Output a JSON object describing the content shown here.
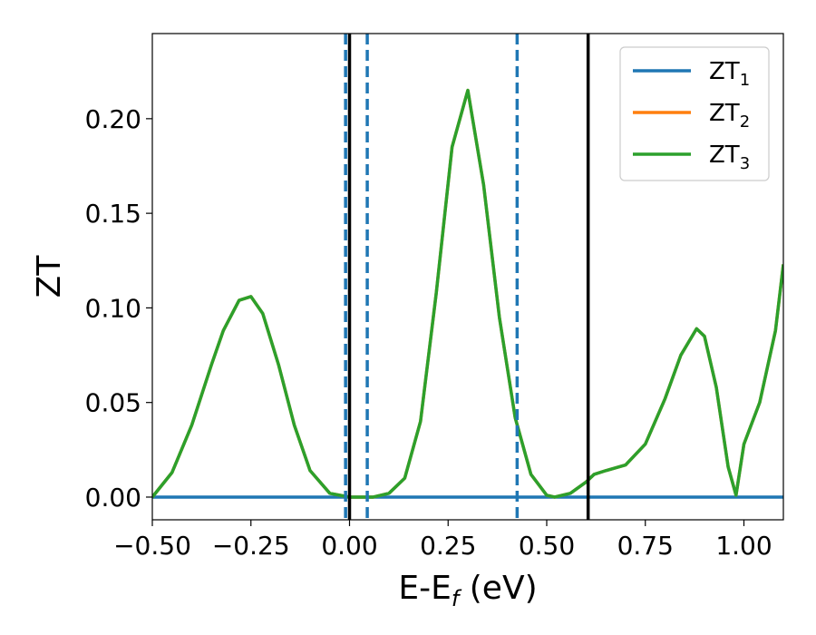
{
  "chart_data": {
    "type": "line",
    "title": "",
    "xlabel": "E-E",
    "xlabel_subscript": "f",
    "xlabel_unit": " (eV)",
    "ylabel": "ZT",
    "xlim": [
      -0.5,
      1.1
    ],
    "ylim": [
      -0.012,
      0.245
    ],
    "xticks": [
      -0.5,
      -0.25,
      0.0,
      0.25,
      0.5,
      0.75,
      1.0
    ],
    "xtick_labels": [
      "−0.50",
      "−0.25",
      "0.00",
      "0.25",
      "0.50",
      "0.75",
      "1.00"
    ],
    "yticks": [
      0.0,
      0.05,
      0.1,
      0.15,
      0.2
    ],
    "ytick_labels": [
      "0.00",
      "0.05",
      "0.10",
      "0.15",
      "0.20"
    ],
    "grid": false,
    "legend_position": "top-right",
    "series": [
      {
        "name": "ZT",
        "name_subscript": "1",
        "color": "#1f77b4",
        "x": [
          -0.5,
          1.1
        ],
        "y": [
          0.0,
          0.0
        ]
      },
      {
        "name": "ZT",
        "name_subscript": "2",
        "color": "#ff7f0e",
        "x": [
          -0.5,
          -0.45,
          -0.4,
          -0.35,
          -0.32,
          -0.28,
          -0.25,
          -0.22,
          -0.18,
          -0.14,
          -0.1,
          -0.05,
          0.0,
          0.03,
          0.06,
          0.1,
          0.14,
          0.18,
          0.22,
          0.26,
          0.3,
          0.34,
          0.38,
          0.42,
          0.46,
          0.5,
          0.52,
          0.56,
          0.6,
          0.62,
          0.65,
          0.7,
          0.75,
          0.8,
          0.84,
          0.88,
          0.9,
          0.93,
          0.96,
          0.98,
          1.0,
          1.04,
          1.08,
          1.1
        ],
        "y": [
          0.0,
          0.013,
          0.038,
          0.07,
          0.088,
          0.104,
          0.106,
          0.097,
          0.07,
          0.038,
          0.014,
          0.002,
          0.0,
          0.0,
          0.0,
          0.002,
          0.01,
          0.04,
          0.108,
          0.185,
          0.215,
          0.165,
          0.095,
          0.042,
          0.012,
          0.001,
          0.0,
          0.002,
          0.008,
          0.012,
          0.014,
          0.017,
          0.028,
          0.052,
          0.075,
          0.089,
          0.085,
          0.058,
          0.016,
          0.001,
          0.028,
          0.05,
          0.088,
          0.123
        ]
      },
      {
        "name": "ZT",
        "name_subscript": "3",
        "color": "#2ca02c",
        "x": [
          -0.5,
          -0.45,
          -0.4,
          -0.35,
          -0.32,
          -0.28,
          -0.25,
          -0.22,
          -0.18,
          -0.14,
          -0.1,
          -0.05,
          0.0,
          0.03,
          0.06,
          0.1,
          0.14,
          0.18,
          0.22,
          0.26,
          0.3,
          0.34,
          0.38,
          0.42,
          0.46,
          0.5,
          0.52,
          0.56,
          0.6,
          0.62,
          0.65,
          0.7,
          0.75,
          0.8,
          0.84,
          0.88,
          0.9,
          0.93,
          0.96,
          0.98,
          1.0,
          1.04,
          1.08,
          1.1
        ],
        "y": [
          0.0,
          0.013,
          0.038,
          0.07,
          0.088,
          0.104,
          0.106,
          0.097,
          0.07,
          0.038,
          0.014,
          0.002,
          0.0,
          0.0,
          0.0,
          0.002,
          0.01,
          0.04,
          0.108,
          0.185,
          0.215,
          0.165,
          0.095,
          0.042,
          0.012,
          0.001,
          0.0,
          0.002,
          0.008,
          0.012,
          0.014,
          0.017,
          0.028,
          0.052,
          0.075,
          0.089,
          0.085,
          0.058,
          0.016,
          0.001,
          0.028,
          0.05,
          0.088,
          0.123
        ]
      }
    ],
    "vertical_lines": [
      {
        "x": -0.01,
        "style": "dashed",
        "color": "#1f77b4"
      },
      {
        "x": 0.045,
        "style": "dashed",
        "color": "#1f77b4"
      },
      {
        "x": 0.425,
        "style": "dashed",
        "color": "#1f77b4"
      },
      {
        "x": 0.0,
        "style": "solid",
        "color": "#000000"
      },
      {
        "x": 0.605,
        "style": "solid",
        "color": "#000000"
      }
    ]
  }
}
